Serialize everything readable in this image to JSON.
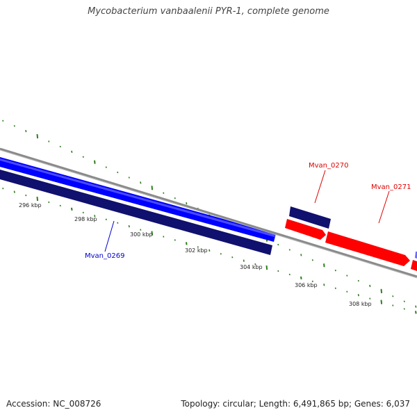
{
  "title": "Mycobacterium vanbaalenii PYR-1, complete genome",
  "footer": {
    "accession": "Accession: NC_008726",
    "summary": "Topology: circular; Length: 6,491,865 bp; Genes: 6,037"
  },
  "colors": {
    "backbone": "#8a8a8a",
    "forward_gene": "#0000ff",
    "reverse_gene": "#10106e",
    "highlight_gene": "#ff0000",
    "gc_ticks": "#2e7d1e",
    "forward_label": "#0000cc",
    "highlight_label": "#dd0000"
  },
  "scale_labels": [
    "296 kbp",
    "298 kbp",
    "300 kbp",
    "302 kbp",
    "304 kbp",
    "306 kbp",
    "308 kbp"
  ],
  "genes": [
    {
      "name": "Mvan_0269",
      "strand": "reverse",
      "color": "forward_label"
    },
    {
      "name": "Mvan_0270",
      "strand": "reverse",
      "color": "highlight_label"
    },
    {
      "name": "Mvan_0271",
      "strand": "forward",
      "color": "highlight_label"
    }
  ]
}
